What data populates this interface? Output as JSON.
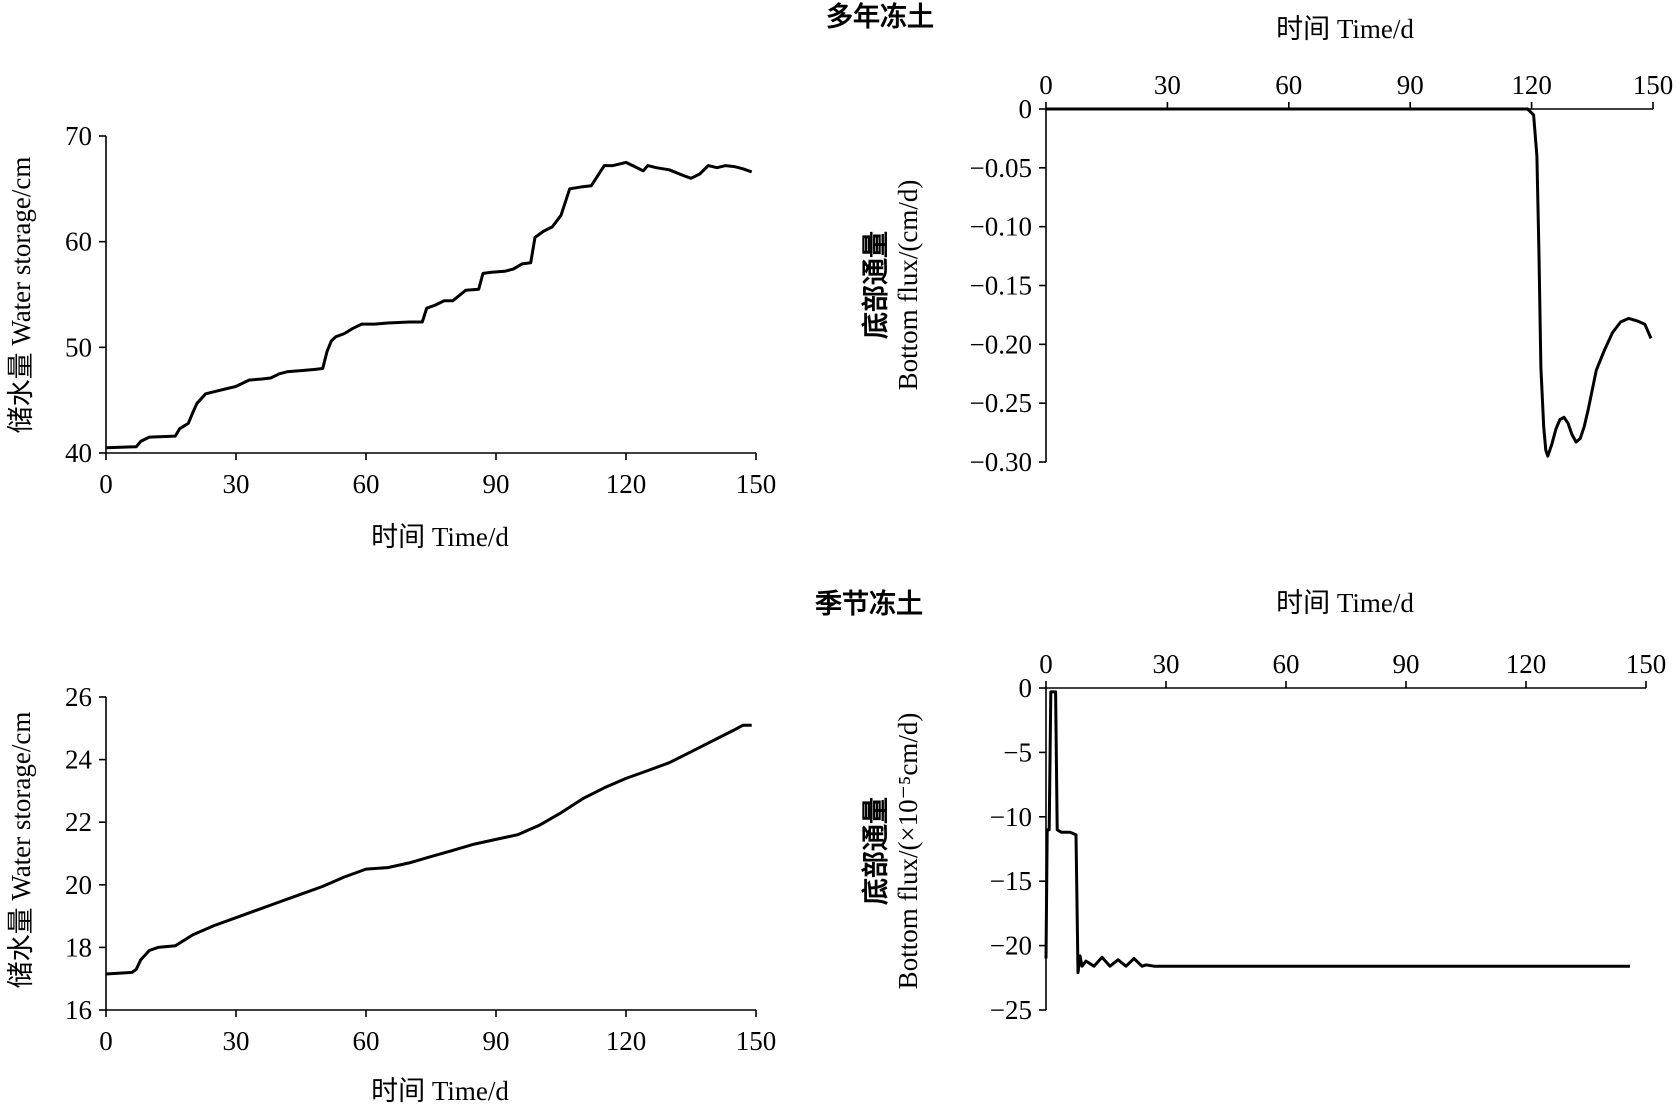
{
  "chart_data": [
    {
      "id": "permafrost-storage",
      "type": "line",
      "title": "",
      "xlabel": "时间  Time/d",
      "ylabel": "储水量  Water storage/cm",
      "xlim": [
        0,
        150
      ],
      "ylim": [
        40,
        70
      ],
      "xticks": [
        0,
        30,
        60,
        90,
        120,
        150
      ],
      "yticks": [
        40,
        50,
        60,
        70
      ],
      "x_axis_position": "bottom",
      "grid": false,
      "series": [
        {
          "x": [
            0,
            7,
            8,
            10,
            16,
            17,
            19,
            20,
            21,
            23,
            25,
            28,
            30,
            33,
            36,
            38,
            40,
            42,
            45,
            48,
            50,
            51,
            52,
            53,
            55,
            57,
            59,
            62,
            65,
            70,
            73,
            74,
            76,
            78,
            80,
            83,
            86,
            87,
            89,
            92,
            94,
            96,
            98,
            99,
            101,
            103,
            105,
            107,
            110,
            112,
            115,
            117,
            120,
            122,
            124,
            125,
            127,
            130,
            133,
            135,
            137,
            139,
            141,
            143,
            145,
            147,
            149
          ],
          "y": [
            40.5,
            40.6,
            41.1,
            41.5,
            41.6,
            42.3,
            42.8,
            43.8,
            44.7,
            45.6,
            45.8,
            46.1,
            46.3,
            46.9,
            47.0,
            47.1,
            47.5,
            47.7,
            47.8,
            47.9,
            48.0,
            49.6,
            50.6,
            51.0,
            51.3,
            51.8,
            52.2,
            52.2,
            52.3,
            52.4,
            52.4,
            53.7,
            54.0,
            54.4,
            54.4,
            55.4,
            55.5,
            57.0,
            57.1,
            57.2,
            57.4,
            57.9,
            58.0,
            60.4,
            61.0,
            61.4,
            62.5,
            65.0,
            65.2,
            65.3,
            67.2,
            67.2,
            67.5,
            67.1,
            66.7,
            67.2,
            67.0,
            66.8,
            66.3,
            66.0,
            66.4,
            67.2,
            67.0,
            67.2,
            67.1,
            66.9,
            66.6
          ]
        }
      ]
    },
    {
      "id": "permafrost-flux",
      "type": "line",
      "title": "多年冻土",
      "xlabel": "时间  Time/d",
      "ylabel": "底部通量",
      "ylabel2": "Bottom flux/(cm/d)",
      "xlim": [
        0,
        150
      ],
      "ylim": [
        -0.3,
        0
      ],
      "xticks": [
        0,
        30,
        60,
        90,
        120,
        150
      ],
      "yticks": [
        0,
        -0.05,
        -0.1,
        -0.15,
        -0.2,
        -0.25,
        -0.3
      ],
      "ytick_labels": [
        "0",
        "−0.05",
        "−0.10",
        "−0.15",
        "−0.20",
        "−0.25",
        "−0.30"
      ],
      "x_axis_position": "top",
      "grid": false,
      "series": [
        {
          "x": [
            0,
            110,
            119,
            120.5,
            121.3,
            121.8,
            122.3,
            123.0,
            123.5,
            124,
            125,
            126,
            127,
            128,
            129,
            130,
            131,
            132,
            133,
            134,
            136,
            138,
            140,
            142,
            144,
            146,
            148,
            149.5
          ],
          "y": [
            0,
            0,
            0,
            -0.005,
            -0.04,
            -0.12,
            -0.22,
            -0.27,
            -0.29,
            -0.295,
            -0.285,
            -0.272,
            -0.264,
            -0.262,
            -0.267,
            -0.277,
            -0.283,
            -0.28,
            -0.27,
            -0.255,
            -0.222,
            -0.205,
            -0.19,
            -0.181,
            -0.178,
            -0.18,
            -0.183,
            -0.195
          ]
        }
      ]
    },
    {
      "id": "seasonal-storage",
      "type": "line",
      "title": "",
      "xlabel": "时间  Time/d",
      "ylabel": "储水量  Water storage/cm",
      "xlim": [
        0,
        150
      ],
      "ylim": [
        16,
        26
      ],
      "xticks": [
        0,
        30,
        60,
        90,
        120,
        150
      ],
      "yticks": [
        16,
        18,
        20,
        22,
        24,
        26
      ],
      "x_axis_position": "bottom",
      "grid": false,
      "series": [
        {
          "x": [
            0,
            6,
            7,
            8,
            10,
            12,
            16,
            20,
            25,
            30,
            35,
            40,
            45,
            50,
            55,
            60,
            65,
            70,
            75,
            80,
            85,
            90,
            95,
            100,
            105,
            110,
            115,
            120,
            125,
            130,
            135,
            140,
            145,
            147,
            149
          ],
          "y": [
            17.15,
            17.2,
            17.3,
            17.6,
            17.9,
            18.0,
            18.05,
            18.4,
            18.7,
            18.95,
            19.2,
            19.45,
            19.7,
            19.95,
            20.25,
            20.5,
            20.55,
            20.7,
            20.9,
            21.1,
            21.3,
            21.45,
            21.6,
            21.9,
            22.3,
            22.75,
            23.1,
            23.4,
            23.65,
            23.9,
            24.25,
            24.6,
            24.95,
            25.1,
            25.1
          ]
        }
      ]
    },
    {
      "id": "seasonal-flux",
      "type": "line",
      "title": "季节冻土",
      "xlabel": "时间  Time/d",
      "ylabel": "底部通量",
      "ylabel2": "Bottom flux/(×10⁻⁵cm/d)",
      "xlim": [
        0,
        150
      ],
      "ylim": [
        -25,
        0
      ],
      "xticks": [
        0,
        30,
        60,
        90,
        120,
        150
      ],
      "yticks": [
        0,
        -5,
        -10,
        -15,
        -20,
        -25
      ],
      "ytick_labels": [
        "0",
        "−5",
        "−10",
        "−15",
        "−20",
        "−25"
      ],
      "x_axis_position": "top",
      "grid": false,
      "series": [
        {
          "x": [
            0,
            0.3,
            0.8,
            1.2,
            1.6,
            2.4,
            2.8,
            3.3,
            3.8,
            6,
            7.5,
            8,
            8.5,
            9,
            10,
            12,
            14,
            16,
            18,
            20,
            22,
            24,
            25,
            27,
            30,
            40,
            60,
            80,
            100,
            120,
            140,
            146
          ],
          "y": [
            -21,
            -11,
            -11,
            -0.3,
            -0.3,
            -0.3,
            -11,
            -11.1,
            -11.2,
            -11.2,
            -11.4,
            -22.1,
            -20.8,
            -21.6,
            -21.2,
            -21.6,
            -20.9,
            -21.6,
            -21.1,
            -21.6,
            -21.0,
            -21.6,
            -21.5,
            -21.6,
            -21.6,
            -21.6,
            -21.6,
            -21.6,
            -21.6,
            -21.6,
            -21.6,
            -21.6
          ]
        }
      ]
    }
  ]
}
